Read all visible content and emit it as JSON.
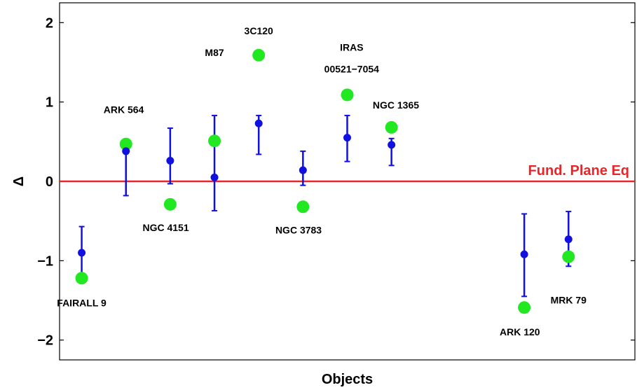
{
  "chart_data": {
    "type": "scatter",
    "title": "",
    "xlabel": "Objects",
    "ylabel": "Δ",
    "ylim": [
      -2.25,
      2.25
    ],
    "xlim": [
      0.5,
      13.5
    ],
    "yticks": [
      -2,
      -1,
      0,
      1,
      2
    ],
    "ytick_labels": [
      "−2",
      "−1",
      "0",
      "1",
      "2"
    ],
    "grid": false,
    "reference_line": {
      "y": 0,
      "label": "Fund. Plane Eq",
      "color": "#e8262a"
    },
    "colors": {
      "blue": "#1010e0",
      "green": "#22e822",
      "axis": "#000000"
    },
    "objects": [
      {
        "name": "FAIRALL 9",
        "label_lines": [
          "FAIRALL 9"
        ],
        "x": 1,
        "blue": -0.9,
        "err_low": -1.25,
        "err_high": -0.57,
        "green": -1.22
      },
      {
        "name": "ARK 564",
        "label_lines": [
          "ARK 564"
        ],
        "x": 2,
        "blue": 0.38,
        "err_low": -0.18,
        "err_high": 0.45,
        "green": 0.47
      },
      {
        "name": "NGC 4151",
        "label_lines": [
          "NGC 4151"
        ],
        "x": 3,
        "blue": 0.26,
        "err_low": -0.03,
        "err_high": 0.67,
        "green": -0.29
      },
      {
        "name": "M87",
        "label_lines": [
          "M87"
        ],
        "x": 4,
        "blue": 0.05,
        "err_low": -0.37,
        "err_high": 0.83,
        "green": 0.51
      },
      {
        "name": "3C120",
        "label_lines": [
          "3C120"
        ],
        "x": 5,
        "blue": 0.73,
        "err_low": 0.34,
        "err_high": 0.83,
        "green": 1.59
      },
      {
        "name": "NGC 3783",
        "label_lines": [
          "NGC 3783"
        ],
        "x": 6,
        "blue": 0.14,
        "err_low": -0.05,
        "err_high": 0.38,
        "green": -0.32
      },
      {
        "name": "IRAS 00521−7054",
        "label_lines": [
          "IRAS",
          "00521−7054"
        ],
        "x": 7,
        "blue": 0.55,
        "err_low": 0.25,
        "err_high": 0.83,
        "green": 1.09
      },
      {
        "name": "NGC 1365",
        "label_lines": [
          "NGC 1365"
        ],
        "x": 8,
        "blue": 0.46,
        "err_low": 0.2,
        "err_high": 0.54,
        "green": 0.68
      },
      {
        "name": "ARK 120",
        "label_lines": [
          "ARK 120"
        ],
        "x": 11,
        "blue": -0.92,
        "err_low": -1.45,
        "err_high": -0.41,
        "green": -1.59
      },
      {
        "name": "MRK 79",
        "label_lines": [
          "MRK 79"
        ],
        "x": 12,
        "blue": -0.73,
        "err_low": -1.07,
        "err_high": -0.38,
        "green": -0.95
      }
    ]
  }
}
